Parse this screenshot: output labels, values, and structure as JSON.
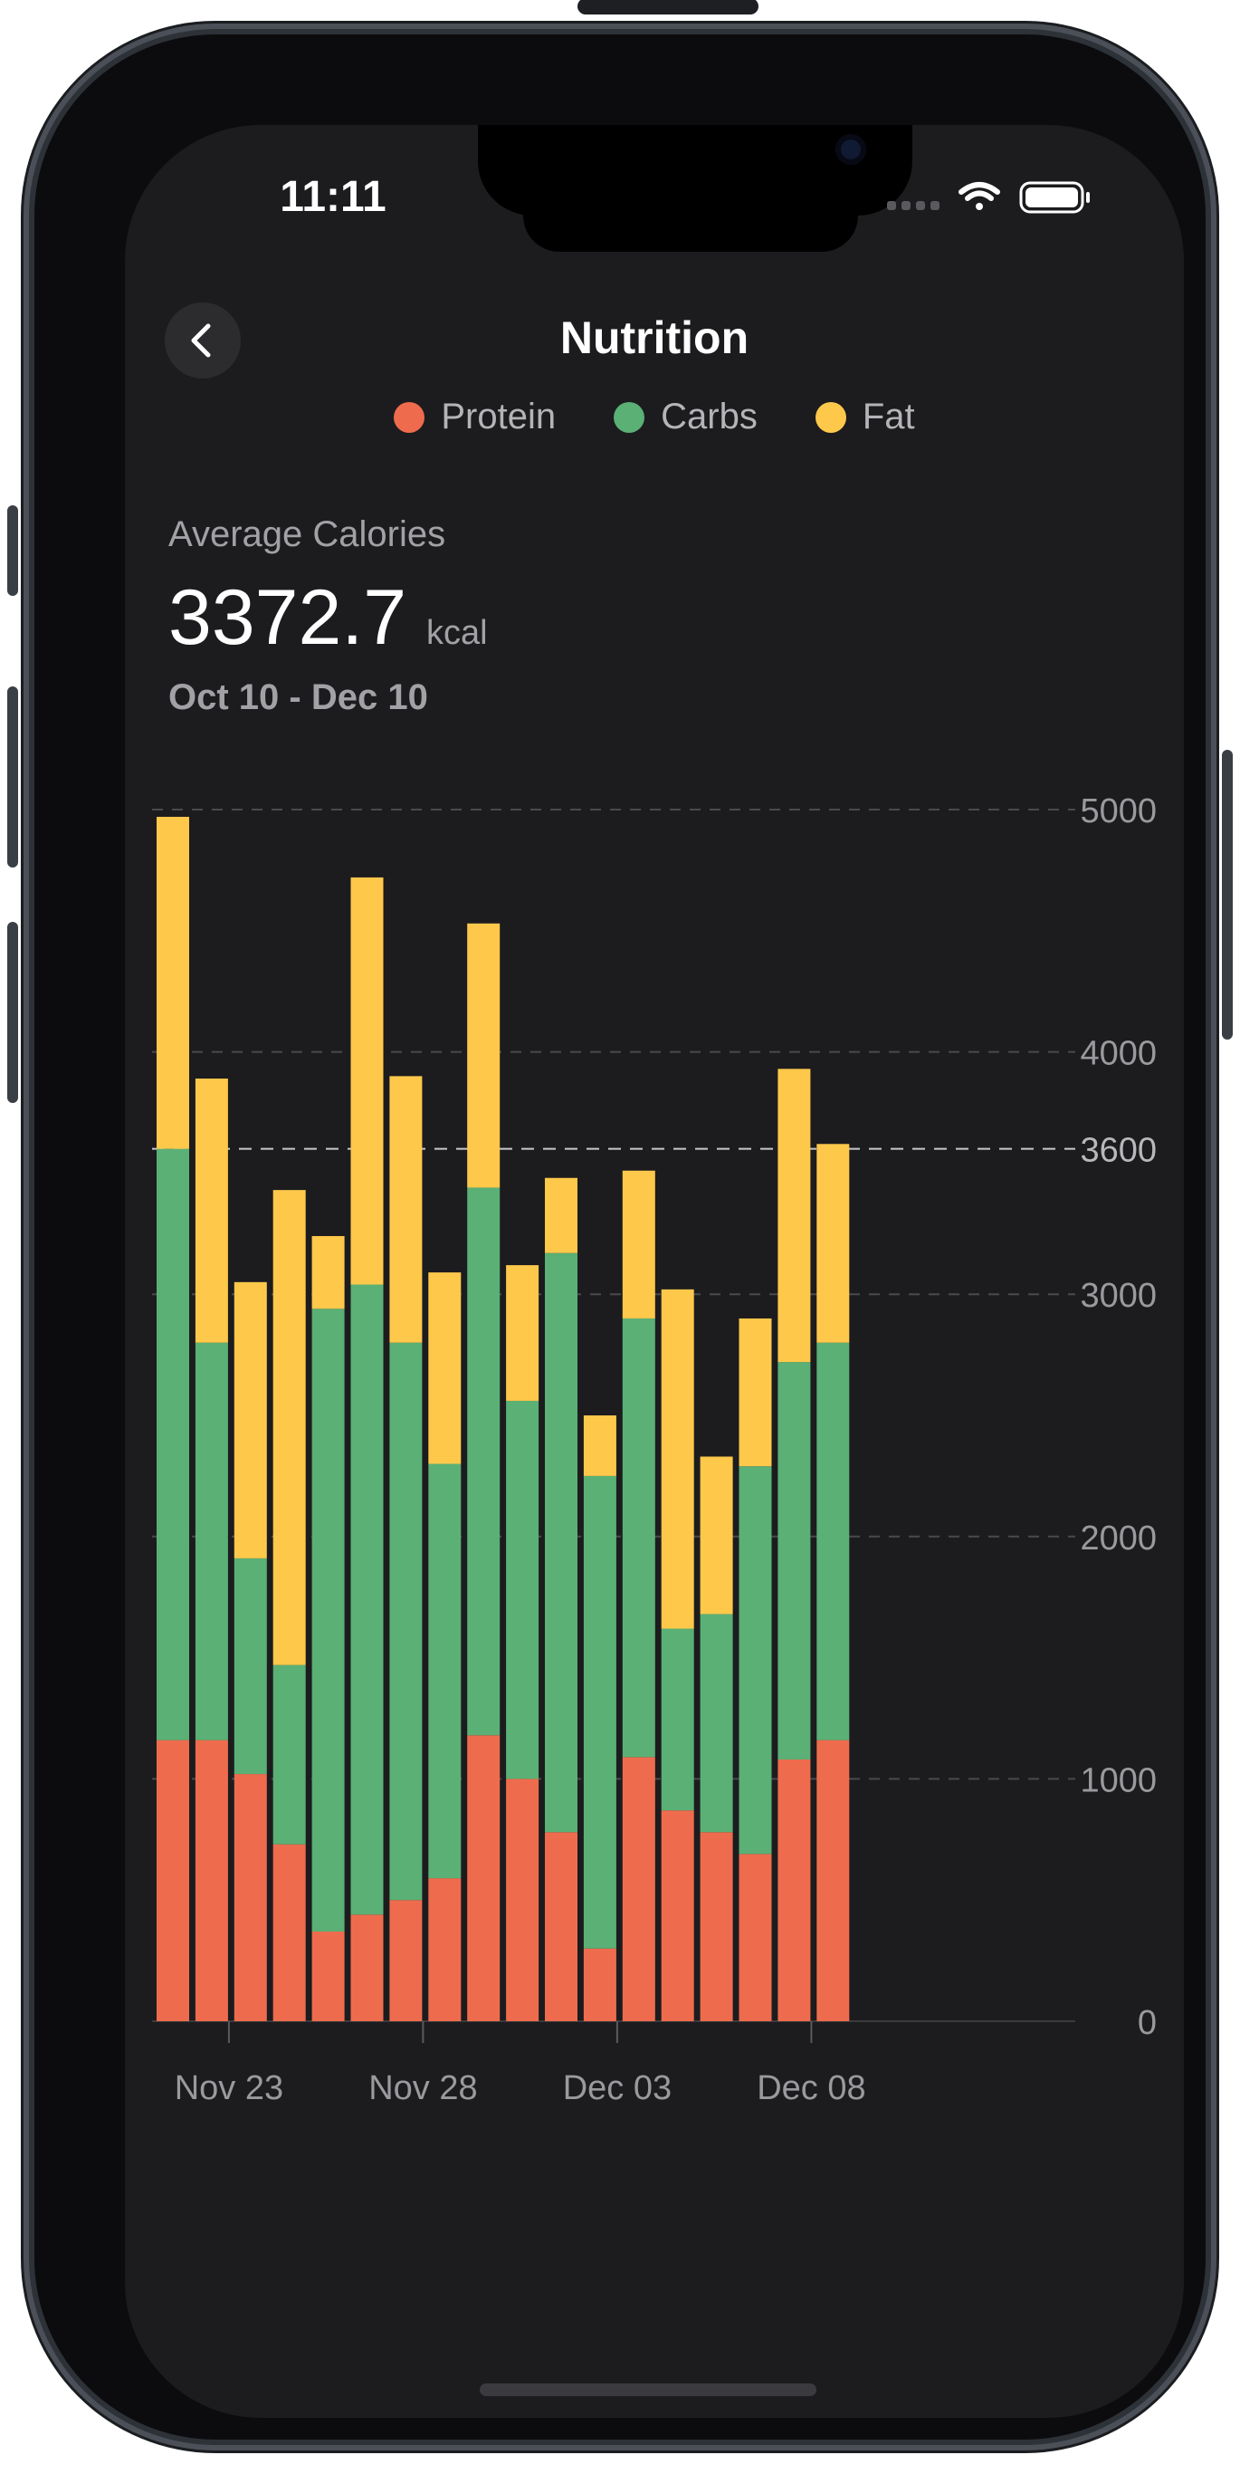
{
  "status_bar": {
    "time": "11:11"
  },
  "header": {
    "title": "Nutrition",
    "back_icon": "chevron-left-icon"
  },
  "legend": [
    {
      "label": "Protein",
      "color": "#EE6C4D"
    },
    {
      "label": "Carbs",
      "color": "#5AB075"
    },
    {
      "label": "Fat",
      "color": "#FEC84B"
    }
  ],
  "summary": {
    "label": "Average Calories",
    "value": "3372.7",
    "unit": "kcal",
    "range": "Oct 10 - Dec 10"
  },
  "chart_data": {
    "type": "bar",
    "stacked": true,
    "title": "",
    "xlabel": "",
    "ylabel": "",
    "ylim": [
      0,
      5000
    ],
    "y_ticks": [
      0,
      1000,
      2000,
      3000,
      4000,
      5000
    ],
    "target_line": {
      "value": 3600,
      "label": "3600"
    },
    "x_tick_labels": [
      "Nov 23",
      "Nov 28",
      "Dec 03",
      "Dec 08"
    ],
    "x_tick_positions": [
      "Nov 23",
      "Nov 28",
      "Dec 03",
      "Dec 08"
    ],
    "categories": [
      "Nov 22",
      "Nov 23",
      "Nov 24",
      "Nov 25",
      "Nov 26",
      "Nov 27",
      "Nov 28",
      "Nov 29",
      "Nov 30",
      "Dec 01",
      "Dec 02",
      "Dec 03",
      "Dec 04",
      "Dec 05",
      "Dec 06",
      "Dec 07",
      "Dec 08",
      "Dec 09",
      "Dec 10"
    ],
    "series": [
      {
        "name": "Protein",
        "color": "#EE6C4D",
        "values": [
          1160,
          1160,
          1020,
          730,
          370,
          440,
          500,
          590,
          1180,
          1000,
          780,
          300,
          1090,
          870,
          780,
          690,
          1080,
          1160,
          0
        ]
      },
      {
        "name": "Carbs",
        "color": "#5AB075",
        "values": [
          2440,
          1640,
          890,
          740,
          2570,
          2600,
          2300,
          1710,
          2260,
          1560,
          2390,
          1950,
          1810,
          750,
          900,
          1600,
          1640,
          1640,
          0
        ]
      },
      {
        "name": "Fat",
        "color": "#FEC84B",
        "values": [
          1370,
          1090,
          1140,
          1960,
          300,
          1680,
          1100,
          790,
          1090,
          560,
          310,
          250,
          610,
          1400,
          650,
          610,
          1210,
          820,
          0
        ]
      }
    ],
    "legend_position": "top",
    "grid": true
  }
}
